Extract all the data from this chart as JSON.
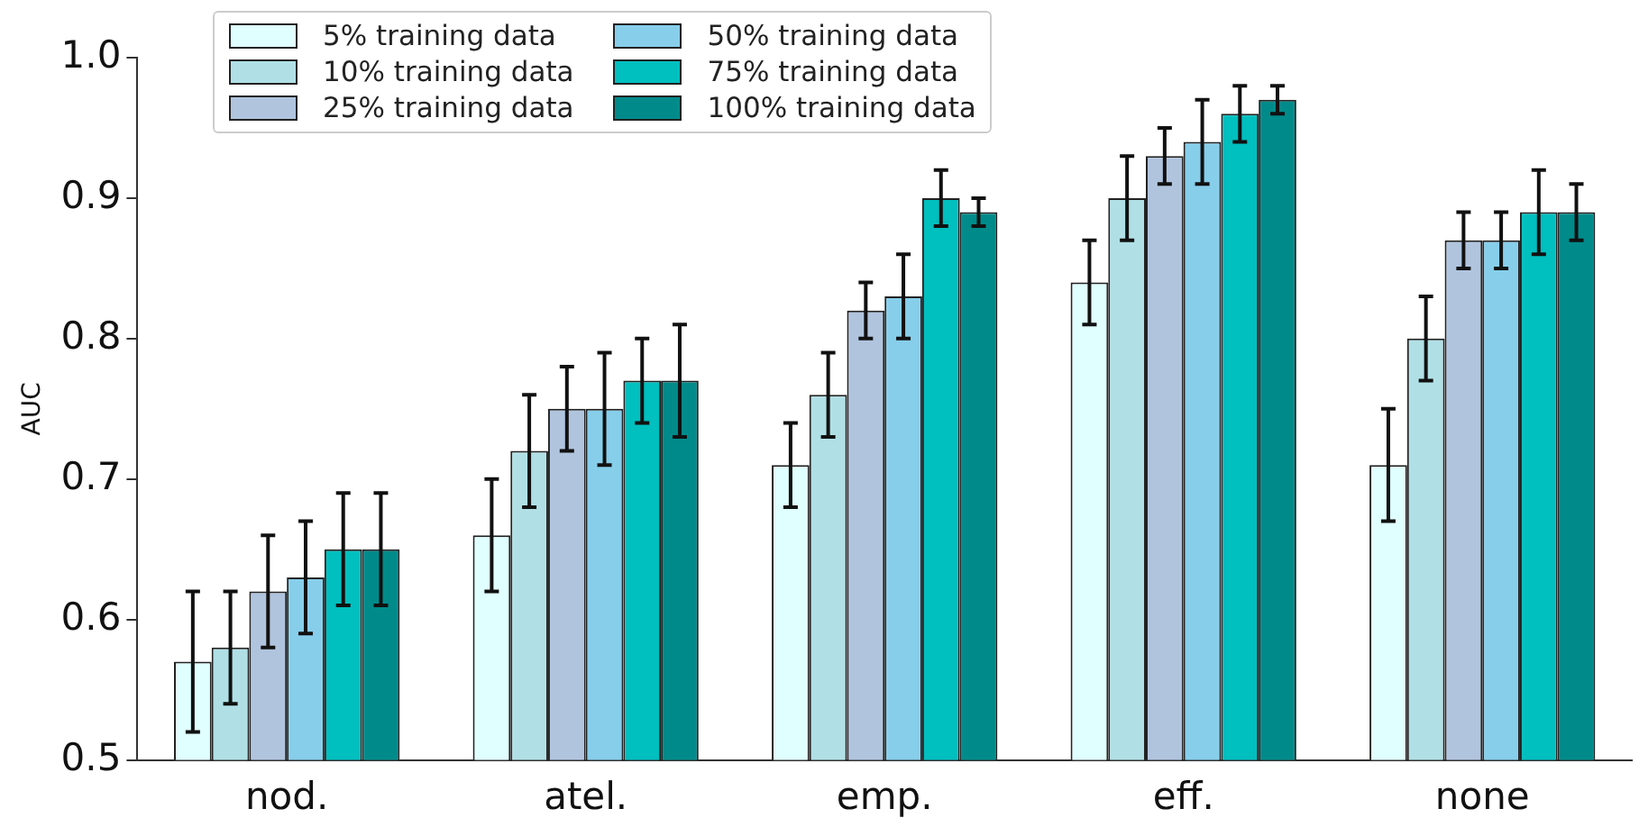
{
  "chart_data": {
    "type": "bar",
    "ylabel": "AUC",
    "categories": [
      "nod.",
      "atel.",
      "emp.",
      "eff.",
      "none"
    ],
    "series": [
      {
        "name": "5% training data",
        "color": "#e0ffff",
        "values": [
          0.57,
          0.66,
          0.71,
          0.84,
          0.71
        ],
        "errors": [
          0.05,
          0.04,
          0.03,
          0.03,
          0.04
        ]
      },
      {
        "name": "10% training data",
        "color": "#b0e0e6",
        "values": [
          0.58,
          0.72,
          0.76,
          0.9,
          0.8
        ],
        "errors": [
          0.04,
          0.04,
          0.03,
          0.03,
          0.03
        ]
      },
      {
        "name": "25% training data",
        "color": "#b0c4de",
        "values": [
          0.62,
          0.75,
          0.82,
          0.93,
          0.87
        ],
        "errors": [
          0.04,
          0.03,
          0.02,
          0.02,
          0.02
        ]
      },
      {
        "name": "50% training data",
        "color": "#87ceeb",
        "values": [
          0.63,
          0.75,
          0.83,
          0.94,
          0.87
        ],
        "errors": [
          0.04,
          0.04,
          0.03,
          0.03,
          0.02
        ]
      },
      {
        "name": "75% training data",
        "color": "#00bfbf",
        "values": [
          0.65,
          0.77,
          0.9,
          0.96,
          0.89
        ],
        "errors": [
          0.04,
          0.03,
          0.02,
          0.02,
          0.03
        ]
      },
      {
        "name": "100% training data",
        "color": "#008b8b",
        "values": [
          0.65,
          0.77,
          0.89,
          0.97,
          0.89
        ],
        "errors": [
          0.04,
          0.04,
          0.01,
          0.01,
          0.02
        ]
      }
    ],
    "ylim": [
      0.5,
      1.0
    ],
    "yticks": [
      0.5,
      0.6,
      0.7,
      0.8,
      0.9,
      {
        "value": 1,
        "label": "1.0"
      }
    ],
    "grid": false,
    "legend": "top left"
  }
}
